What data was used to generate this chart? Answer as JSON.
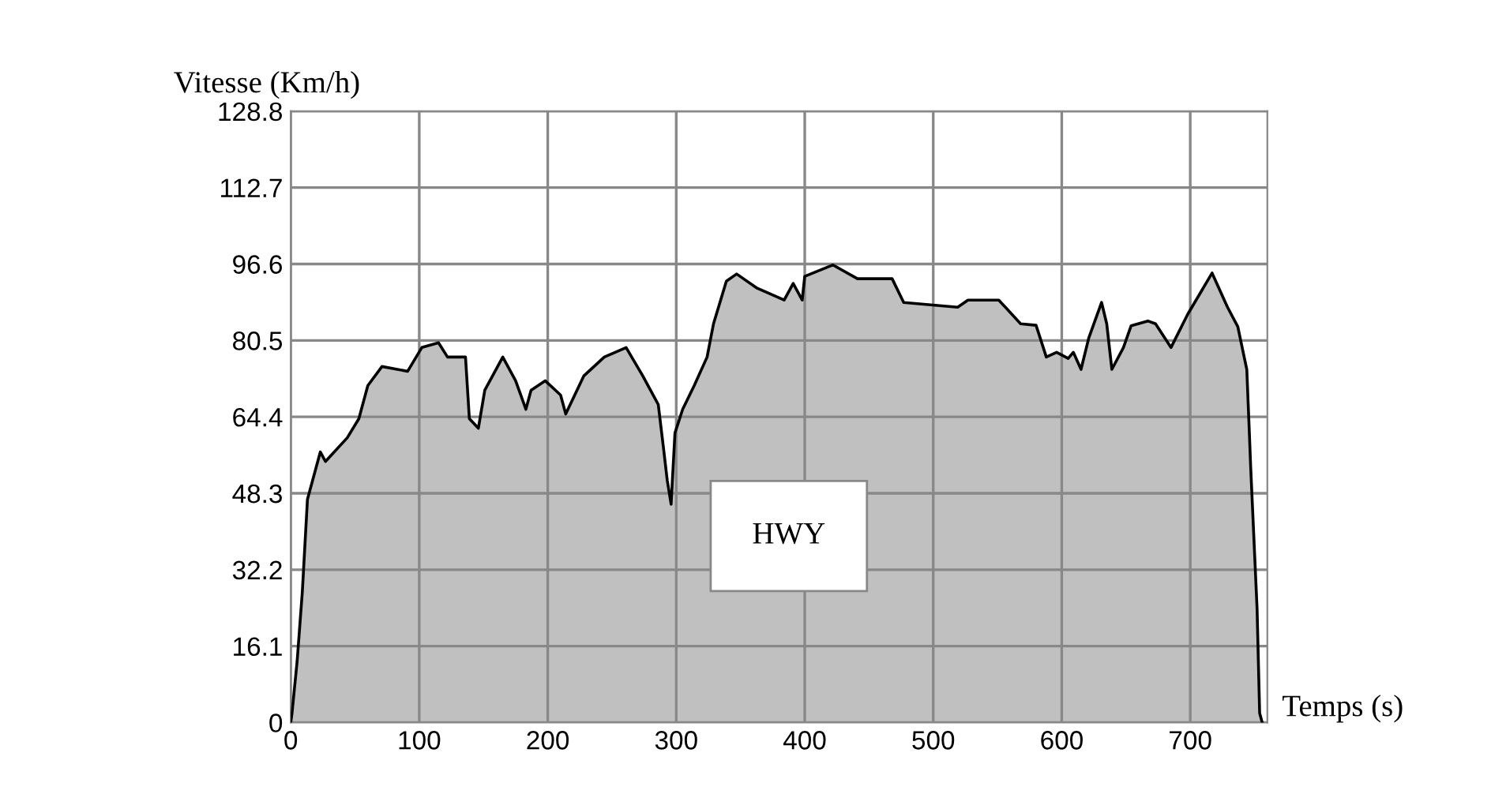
{
  "chart_data": {
    "type": "area",
    "xlabel": "Temps (s)",
    "ylabel": "Vitesse (Km/h)",
    "annotations": [
      "HWY"
    ],
    "x": [
      0,
      1,
      5,
      9,
      13,
      23,
      27,
      44,
      53,
      60,
      71,
      91,
      102,
      115,
      122,
      136,
      139,
      146,
      151,
      165,
      175,
      183,
      187,
      198,
      210,
      214,
      228,
      244,
      261,
      274,
      286,
      290,
      293,
      296,
      299,
      305,
      314,
      324,
      329,
      339,
      347,
      363,
      384,
      391,
      398,
      400,
      422,
      441,
      468,
      477,
      498,
      519,
      527,
      551,
      568,
      580,
      588,
      596,
      605,
      609,
      615,
      621,
      631,
      635,
      639,
      648,
      654,
      667,
      673,
      685,
      698,
      717,
      729,
      737,
      744,
      746,
      747,
      752,
      754,
      756
    ],
    "series": [
      {
        "color": "#c0c0c0",
        "values": [
          0,
          2,
          13,
          27.5,
          47,
          57,
          55,
          60,
          64,
          71,
          75,
          74,
          79,
          80,
          77,
          77,
          64,
          62,
          70,
          77,
          72,
          66,
          70,
          72,
          69,
          65,
          73,
          77,
          79,
          73,
          67,
          58,
          51,
          46,
          61,
          66,
          71,
          77,
          84,
          93,
          94.5,
          91.5,
          89,
          92.5,
          89,
          94,
          96.4,
          93.5,
          93.5,
          88.5,
          88,
          87.5,
          89,
          89,
          84,
          83.7,
          77,
          78,
          76.7,
          78,
          74.4,
          81,
          88.5,
          84,
          74.4,
          79,
          83.6,
          84.6,
          84,
          79,
          86,
          94.7,
          87.5,
          83.4,
          74.4,
          61,
          54,
          24,
          2,
          0
        ]
      }
    ],
    "xlim": [
      0,
      760
    ],
    "xticks": [
      0,
      100,
      200,
      300,
      400,
      500,
      600,
      700
    ],
    "ylim": [
      0,
      128.8
    ],
    "yticks": [
      0,
      16.1,
      32.2,
      48.3,
      64.4,
      80.5,
      96.6,
      112.7,
      128.8
    ],
    "grid": true,
    "legend": false
  }
}
